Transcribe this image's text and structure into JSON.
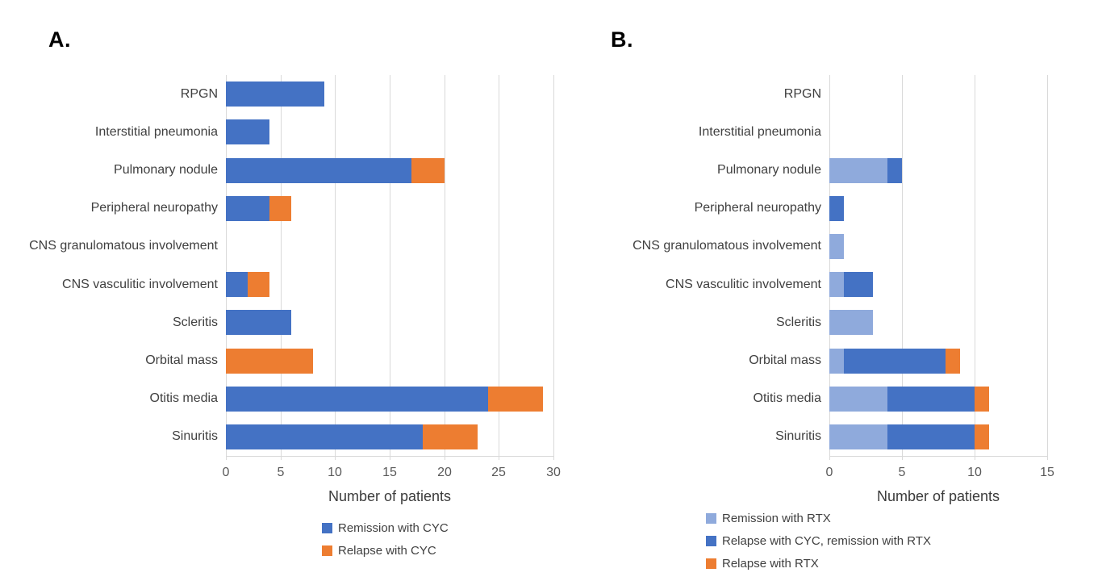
{
  "colors": {
    "series_blue": "#4472C4",
    "series_orange": "#ED7D31",
    "series_light_blue": "#8FAADC",
    "gridline": "#D9D9D9",
    "tick_text": "#595959",
    "label_text": "#404040"
  },
  "chart_data": [
    {
      "type": "bar",
      "orientation": "horizontal",
      "stacked": true,
      "panel_label": "A.",
      "xlabel": "Number of patients",
      "xlim": [
        0,
        30
      ],
      "xticks": [
        0,
        5,
        10,
        15,
        20,
        25,
        30
      ],
      "grid": true,
      "legend_position": "bottom-center",
      "categories": [
        "RPGN",
        "Interstitial pneumonia",
        "Pulmonary nodule",
        "Peripheral neuropathy",
        "CNS granulomatous involvement",
        "CNS vasculitic involvement",
        "Scleritis",
        "Orbital mass",
        "Otitis media",
        "Sinuritis"
      ],
      "series": [
        {
          "name": "Remission with CYC",
          "color": "#4472C4",
          "values": [
            9,
            4,
            17,
            4,
            0,
            2,
            6,
            0,
            24,
            18
          ]
        },
        {
          "name": "Relapse with CYC",
          "color": "#ED7D31",
          "values": [
            0,
            0,
            3,
            2,
            0,
            2,
            0,
            8,
            5,
            5
          ]
        }
      ]
    },
    {
      "type": "bar",
      "orientation": "horizontal",
      "stacked": true,
      "panel_label": "B.",
      "xlabel": "Number of patients",
      "xlim": [
        0,
        15
      ],
      "xticks": [
        0,
        5,
        10,
        15
      ],
      "grid": true,
      "legend_position": "bottom-left",
      "categories": [
        "RPGN",
        "Interstitial pneumonia",
        "Pulmonary nodule",
        "Peripheral neuropathy",
        "CNS granulomatous involvement",
        "CNS vasculitic involvement",
        "Scleritis",
        "Orbital mass",
        "Otitis media",
        "Sinuritis"
      ],
      "series": [
        {
          "name": "Remission with RTX",
          "color": "#8FAADC",
          "values": [
            0,
            0,
            4,
            0,
            1,
            1,
            3,
            1,
            4,
            4
          ]
        },
        {
          "name": "Relapse with CYC, remission with RTX",
          "color": "#4472C4",
          "values": [
            0,
            0,
            1,
            1,
            0,
            2,
            0,
            7,
            6,
            6
          ]
        },
        {
          "name": "Relapse with RTX",
          "color": "#ED7D31",
          "values": [
            0,
            0,
            0,
            0,
            0,
            0,
            0,
            1,
            1,
            1
          ]
        }
      ]
    }
  ]
}
